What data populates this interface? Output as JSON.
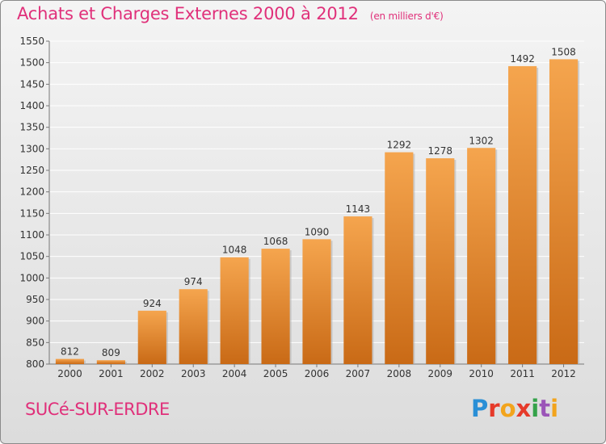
{
  "header": {
    "title": "Achats et Charges Externes 2000 à 2012",
    "subtitle": "(en milliers d'€)"
  },
  "footer": {
    "town": "SUCé-SUR-ERDRE",
    "logo_text": "Proxiti",
    "logo_letters": [
      "P",
      "r",
      "o",
      "x",
      "i",
      "t",
      "i"
    ]
  },
  "colors": {
    "title": "#e0307a",
    "bar_light": "#f5a54e",
    "bar_dark": "#c96a16",
    "grid": "#ffffff"
  },
  "chart_data": {
    "type": "bar",
    "title": "Achats et Charges Externes 2000 à 2012",
    "subtitle": "(en milliers d'€)",
    "categories": [
      "2000",
      "2001",
      "2002",
      "2003",
      "2004",
      "2005",
      "2006",
      "2007",
      "2008",
      "2009",
      "2010",
      "2011",
      "2012"
    ],
    "values": [
      812,
      809,
      924,
      974,
      1048,
      1068,
      1090,
      1143,
      1292,
      1278,
      1302,
      1492,
      1508
    ],
    "ylim": [
      800,
      1550
    ],
    "yticks": [
      800,
      850,
      900,
      950,
      1000,
      1050,
      1100,
      1150,
      1200,
      1250,
      1300,
      1350,
      1400,
      1450,
      1500,
      1550
    ],
    "grid": true,
    "data_labels": true
  }
}
